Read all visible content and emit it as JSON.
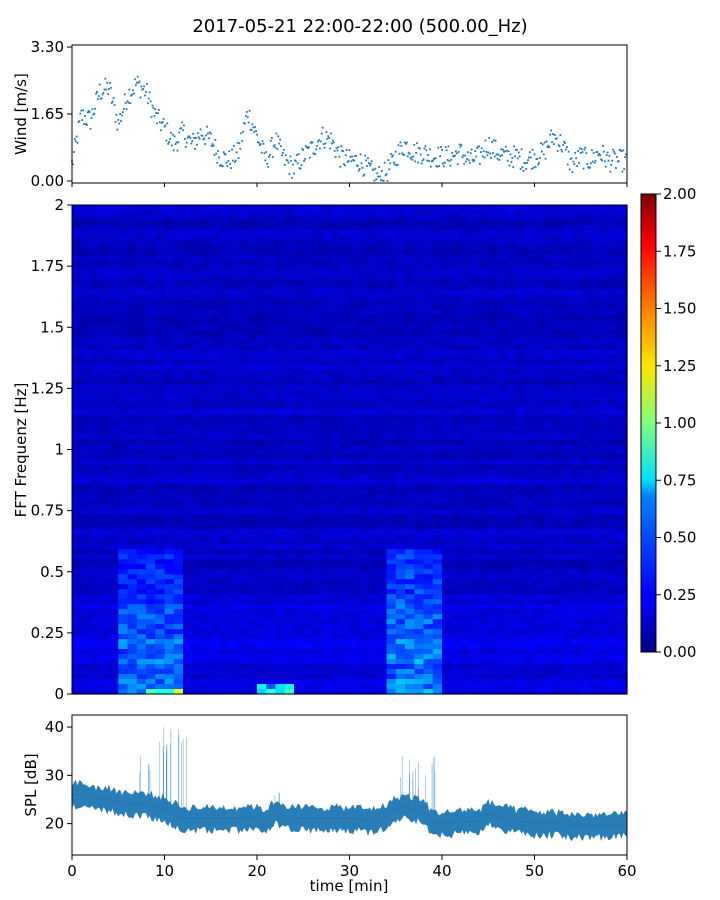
{
  "title": "2017-05-21 22:00-22:00 (500.00_Hz)",
  "colors": {
    "series": "#1f77b4",
    "axis": "#000000",
    "background": "#ffffff"
  },
  "chart_data": [
    {
      "id": "wind",
      "type": "scatter",
      "title": "",
      "xlabel": "",
      "ylabel": "Wind [m/s]",
      "xlim": [
        0,
        60
      ],
      "ylim": [
        -0.05,
        3.35
      ],
      "yticks": [
        "0.00",
        "1.65",
        "3.30"
      ],
      "grid": false,
      "series": [
        {
          "x": [
            0,
            1,
            2,
            3,
            4,
            5,
            6,
            7,
            8,
            9,
            10,
            11,
            12,
            13,
            14,
            15,
            16,
            17,
            18,
            19,
            20,
            21,
            22,
            23,
            24,
            25,
            26,
            27,
            28,
            29,
            30,
            31,
            32,
            33,
            34,
            35,
            36,
            37,
            38,
            39,
            40,
            41,
            42,
            43,
            44,
            45,
            46,
            47,
            48,
            49,
            50,
            51,
            52,
            53,
            54,
            55,
            56,
            57,
            58,
            59,
            60
          ],
          "y": [
            0.4,
            1.6,
            1.5,
            2.2,
            2.3,
            1.4,
            2.1,
            2.4,
            2.2,
            1.6,
            1.3,
            0.9,
            1.2,
            0.9,
            1.2,
            1.0,
            0.6,
            0.5,
            0.7,
            1.7,
            1.1,
            0.5,
            1.0,
            0.5,
            0.3,
            0.6,
            0.8,
            1.1,
            1.0,
            0.6,
            0.5,
            0.5,
            0.3,
            0.1,
            0.2,
            0.6,
            0.9,
            0.7,
            0.7,
            0.6,
            0.6,
            0.6,
            0.7,
            0.5,
            0.6,
            0.9,
            0.7,
            0.6,
            0.6,
            0.5,
            0.6,
            0.7,
            1.1,
            0.9,
            0.4,
            0.6,
            0.5,
            0.7,
            0.5,
            0.5,
            0.5
          ]
        }
      ]
    },
    {
      "id": "spectrogram",
      "type": "heatmap",
      "title": "",
      "xlabel": "",
      "ylabel": "FFT Frequenz [Hz]",
      "xlim": [
        0,
        60
      ],
      "ylim": [
        0,
        2
      ],
      "yticks": [
        "0",
        "0.25",
        "0.5",
        "0.75",
        "1",
        "1.25",
        "1.5",
        "1.75",
        "2"
      ],
      "colorbar": {
        "range": [
          0,
          2
        ],
        "ticks": [
          "0.00",
          "0.25",
          "0.50",
          "0.75",
          "1.00",
          "1.25",
          "1.50",
          "1.75",
          "2.00"
        ],
        "colormap": "jet"
      },
      "hot_regions": [
        {
          "x": [
            5,
            12
          ],
          "y": [
            0,
            0.6
          ],
          "intensity": 0.45
        },
        {
          "x": [
            34,
            40
          ],
          "y": [
            0,
            0.6
          ],
          "intensity": 0.5
        },
        {
          "x": [
            20,
            24
          ],
          "y": [
            0,
            0.05
          ],
          "intensity": 0.9
        },
        {
          "x": [
            8,
            12
          ],
          "y": [
            0,
            0.03
          ],
          "intensity": 1.0
        }
      ]
    },
    {
      "id": "spl",
      "type": "line",
      "title": "",
      "xlabel": "time [min]",
      "ylabel": "SPL [dB]",
      "xlim": [
        0,
        60
      ],
      "ylim": [
        13.5,
        42.5
      ],
      "yticks": [
        "20",
        "30",
        "40"
      ],
      "xticks": [
        "0",
        "10",
        "20",
        "30",
        "40",
        "50",
        "60"
      ],
      "grid": false,
      "series": [
        {
          "x": [
            0,
            1,
            2,
            3,
            4,
            5,
            6,
            7,
            8,
            9,
            10,
            11,
            12,
            13,
            14,
            15,
            16,
            17,
            18,
            19,
            20,
            21,
            22,
            23,
            24,
            25,
            26,
            27,
            28,
            29,
            30,
            31,
            32,
            33,
            34,
            35,
            36,
            37,
            38,
            39,
            40,
            41,
            42,
            43,
            44,
            45,
            46,
            47,
            48,
            49,
            50,
            51,
            52,
            53,
            54,
            55,
            56,
            57,
            58,
            59,
            60
          ],
          "y": [
            26,
            26,
            25.5,
            25,
            25,
            24.5,
            24,
            24,
            24,
            23.5,
            23,
            22,
            21,
            21,
            21,
            21,
            21,
            21,
            21,
            21.5,
            21,
            20.5,
            22.5,
            21.5,
            21,
            21,
            21,
            21,
            21,
            21,
            21,
            21,
            20.5,
            21,
            21.5,
            23,
            23.5,
            23,
            22.5,
            20,
            20,
            20,
            20.5,
            20.5,
            20.5,
            22,
            21.5,
            21,
            20.5,
            20.5,
            20,
            20,
            20,
            20,
            19.5,
            19.5,
            19.5,
            19.5,
            19.5,
            19.5,
            20
          ],
          "spikes": [
            [
              8,
              35
            ],
            [
              9.5,
              38
            ],
            [
              10,
              41
            ],
            [
              11.8,
              41
            ],
            [
              22,
              28
            ],
            [
              36,
              35
            ],
            [
              37.5,
              33
            ],
            [
              38.5,
              34
            ],
            [
              44.5,
              26
            ]
          ]
        }
      ]
    }
  ]
}
